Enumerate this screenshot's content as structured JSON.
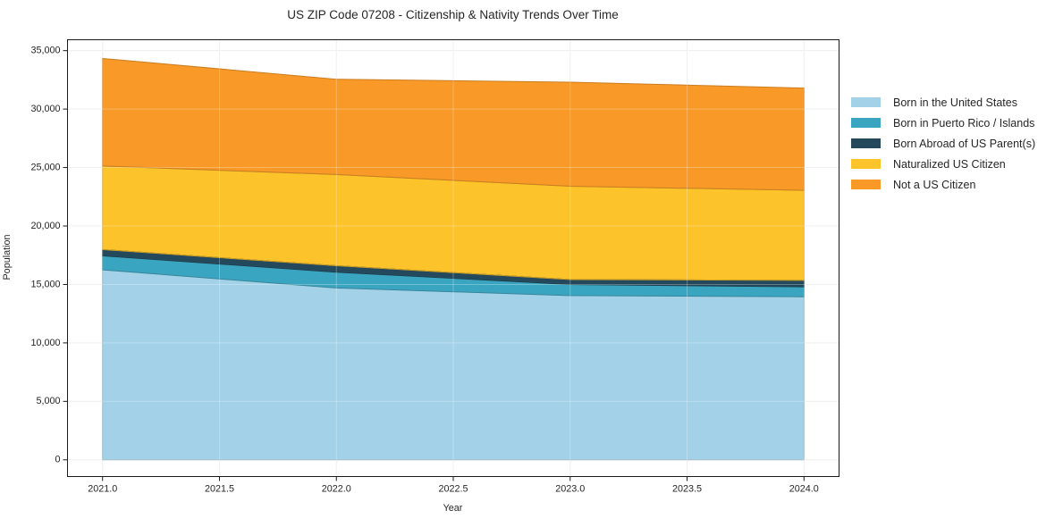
{
  "title": "US ZIP Code 07208 - Citizenship & Nativity Trends Over Time",
  "chart_data": {
    "type": "area",
    "stacked": true,
    "title": "US ZIP Code 07208 - Citizenship & Nativity Trends Over Time",
    "xlabel": "Year",
    "ylabel": "Population",
    "x": [
      2021,
      2022,
      2023,
      2024
    ],
    "series": [
      {
        "name": "Born in the United States",
        "color": "#a2d1e8",
        "values": [
          16250,
          14700,
          14050,
          13950
        ]
      },
      {
        "name": "Born in Puerto Rico / Islands",
        "color": "#3aa5c0",
        "values": [
          1200,
          1350,
          950,
          850
        ]
      },
      {
        "name": "Born Abroad of US Parent(s)",
        "color": "#25495c",
        "values": [
          530,
          550,
          420,
          550
        ]
      },
      {
        "name": "Naturalized US Citizen",
        "color": "#fdc32b",
        "values": [
          7150,
          7800,
          7980,
          7700
        ]
      },
      {
        "name": "Not a US Citizen",
        "color": "#f89928",
        "values": [
          9200,
          8150,
          8900,
          8750
        ]
      }
    ],
    "stack_totals": [
      34330,
      32550,
      32300,
      31800
    ],
    "xlim": [
      2020.85,
      2024.15
    ],
    "ylim": [
      -1430,
      35930
    ],
    "x_ticks": [
      2021.0,
      2021.5,
      2022.0,
      2022.5,
      2023.0,
      2023.5,
      2024.0
    ],
    "x_tick_labels": [
      "2021.0",
      "2021.5",
      "2022.0",
      "2022.5",
      "2023.0",
      "2023.5",
      "2024.0"
    ],
    "y_ticks": [
      0,
      5000,
      10000,
      15000,
      20000,
      25000,
      30000,
      35000
    ],
    "y_tick_labels": [
      "0",
      "5,000",
      "10,000",
      "15,000",
      "20,000",
      "25,000",
      "30,000",
      "35,000"
    ],
    "grid": true,
    "grid_color": "#eaeaea",
    "frame_color": "#1a1a1a",
    "legend_position": "right-outside"
  }
}
